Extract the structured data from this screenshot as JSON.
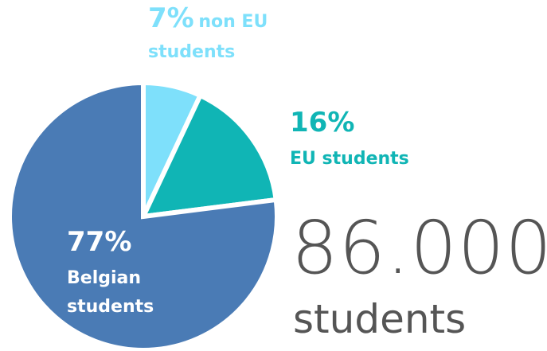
{
  "chart_data": {
    "type": "pie",
    "categories": [
      "non EU students",
      "EU students",
      "Belgian students"
    ],
    "values": [
      7,
      16,
      77
    ],
    "value_labels": [
      "7%",
      "16%",
      "77%"
    ],
    "colors": [
      "#7ee0fb",
      "#10b5b5",
      "#4a7bb5"
    ],
    "total": "86.000",
    "total_label": "students"
  }
}
